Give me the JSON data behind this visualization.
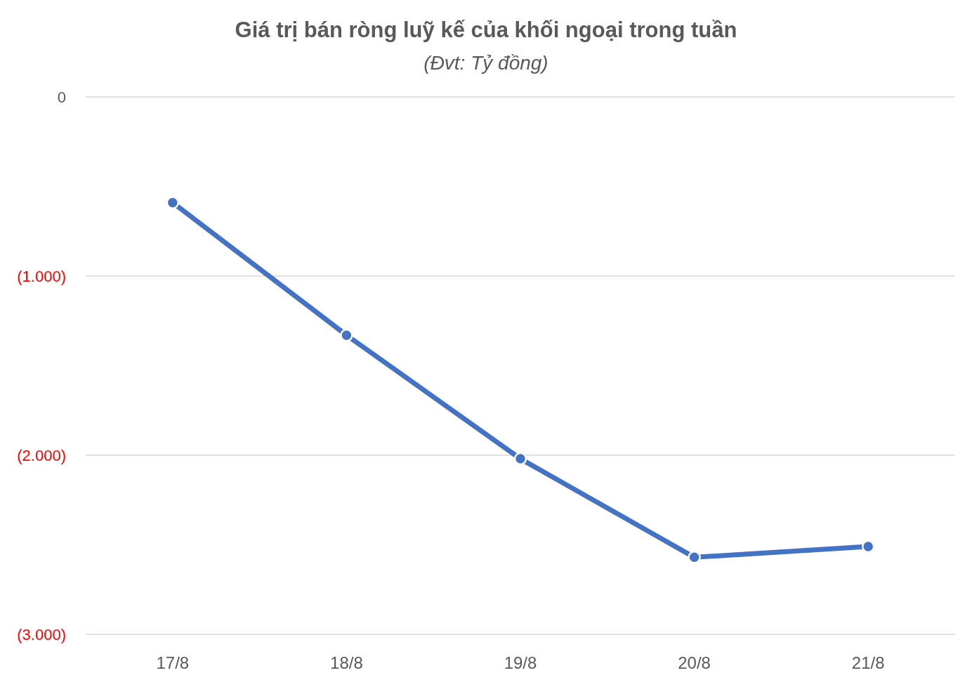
{
  "chart_data": {
    "type": "line",
    "title": "Giá trị bán ròng luỹ kế của khối ngoại trong tuần",
    "subtitle": "(Đvt: Tỷ đồng)",
    "categories": [
      "17/8",
      "18/8",
      "19/8",
      "20/8",
      "21/8"
    ],
    "series": [
      {
        "color": "#4472c4",
        "values": [
          -590,
          -1330,
          -2020,
          -2570,
          -2510
        ]
      }
    ],
    "ylim": [
      -3000,
      0
    ],
    "yticks": [
      0,
      {
        "value": -1000,
        "label": "(1.000)"
      },
      {
        "value": -2000,
        "label": "(2.000)"
      },
      {
        "value": -3000,
        "label": "(3.000)"
      }
    ],
    "grid": "y",
    "marker": "circle"
  }
}
